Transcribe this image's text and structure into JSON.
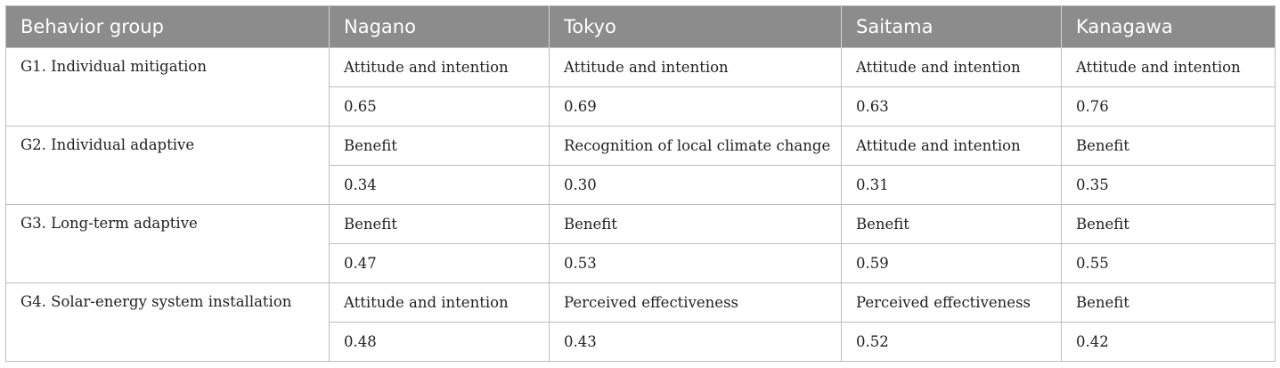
{
  "table": {
    "headers": [
      "Behavior group",
      "Nagano",
      "Tokyo",
      "Saitama",
      "Kanagawa"
    ],
    "groups": [
      {
        "label": "G1. Individual mitigation",
        "factors": [
          "Attitude and intention",
          "Attitude and intention",
          "Attitude and intention",
          "Attitude and intention"
        ],
        "values": [
          "0.65",
          "0.69",
          "0.63",
          "0.76"
        ]
      },
      {
        "label": "G2. Individual adaptive",
        "factors": [
          "Benefit",
          "Recognition of local climate change",
          "Attitude and intention",
          "Benefit"
        ],
        "values": [
          "0.34",
          "0.30",
          "0.31",
          "0.35"
        ]
      },
      {
        "label": "G3. Long-term adaptive",
        "factors": [
          "Benefit",
          "Benefit",
          "Benefit",
          "Benefit"
        ],
        "values": [
          "0.47",
          "0.53",
          "0.59",
          "0.55"
        ]
      },
      {
        "label": "G4. Solar-energy system installation",
        "factors": [
          "Attitude and intention",
          "Perceived effectiveness",
          "Perceived effectiveness",
          "Benefit"
        ],
        "values": [
          "0.48",
          "0.43",
          "0.52",
          "0.42"
        ]
      }
    ]
  }
}
